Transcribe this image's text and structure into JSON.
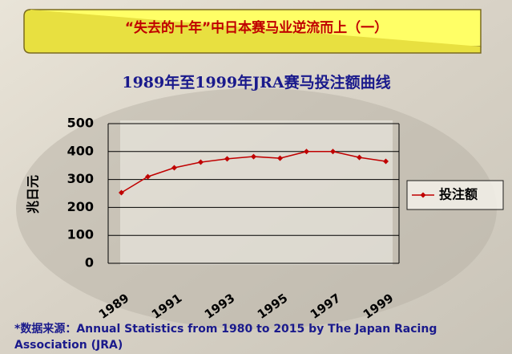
{
  "banner": "“失去的十年”中日本赛马业逆流而上（一）",
  "chart_data": {
    "type": "line",
    "title": "1989年至1999年JRA赛马投注额曲线",
    "y_label": "兆日元",
    "categories": [
      "1989",
      null,
      "1991",
      null,
      "1993",
      null,
      "1995",
      null,
      "1997",
      null,
      "1999"
    ],
    "series": [
      {
        "name": "投注额",
        "color": "#c00000",
        "values": [
          253,
          310,
          342,
          362,
          374,
          382,
          376,
          400,
          400,
          379,
          365
        ]
      }
    ],
    "ylim": [
      0,
      500
    ],
    "yticks": [
      0,
      100,
      200,
      300,
      400,
      500
    ],
    "grid": true,
    "legend": "right"
  },
  "source": "*数据来源：Annual Statistics from 1980 to 2015 by The Japan Racing Association (JRA)"
}
